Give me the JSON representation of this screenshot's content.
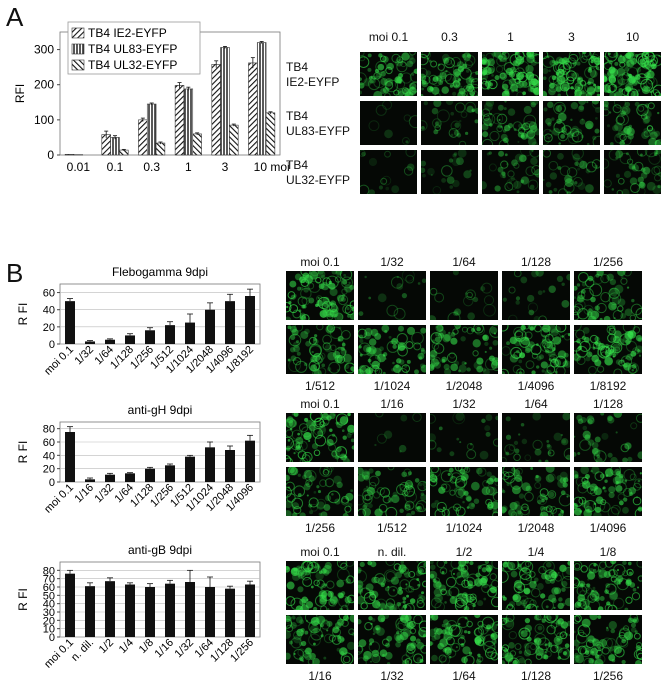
{
  "panel_a": {
    "letter": "A",
    "chart_data": {
      "type": "bar",
      "categories": [
        "0.01",
        "0.1",
        "0.3",
        "1",
        "3",
        "10"
      ],
      "xunit": "moi",
      "ylabel": "RFI",
      "ylim": [
        0,
        350
      ],
      "yticks": [
        "0",
        "100",
        "200",
        "300"
      ],
      "legend_position": "top-left",
      "series": [
        {
          "name": "TB4 IE2-EYFP",
          "pattern": "diag",
          "values": [
            2,
            58,
            100,
            198,
            258,
            262
          ],
          "errors": [
            0,
            10,
            5,
            8,
            10,
            15
          ]
        },
        {
          "name": "TB4 UL83-EYFP",
          "pattern": "vertical",
          "values": [
            1,
            50,
            145,
            188,
            306,
            320
          ],
          "errors": [
            0,
            5,
            3,
            5,
            3,
            3
          ]
        },
        {
          "name": "TB4 UL32-EYFP",
          "pattern": "anti",
          "values": [
            0,
            14,
            34,
            60,
            85,
            120
          ],
          "errors": [
            0,
            2,
            3,
            3,
            3,
            3
          ]
        }
      ]
    },
    "col_labels": [
      "moi 0.1",
      "0.3",
      "1",
      "3",
      "10"
    ],
    "row_labels": [
      {
        "l1": "TB4",
        "l2": "IE2-EYFP"
      },
      {
        "l1": "TB4",
        "l2": "UL83-EYFP"
      },
      {
        "l1": "TB4",
        "l2": "UL32-EYFP"
      }
    ],
    "intensity": [
      [
        0.55,
        0.6,
        0.75,
        0.75,
        0.8
      ],
      [
        0.0,
        0.2,
        0.4,
        0.35,
        0.4
      ],
      [
        0.05,
        0.1,
        0.25,
        0.2,
        0.3
      ]
    ]
  },
  "panel_b": {
    "letter": "B",
    "charts": [
      {
        "type": "bar",
        "title": "Flebogamma 9dpi",
        "ylabel": "R FI",
        "ylim": [
          0,
          70
        ],
        "yticks": [
          "0",
          "20",
          "40",
          "60"
        ],
        "categories": [
          "moi 0.1",
          "1/32",
          "1/64",
          "1/128",
          "1/256",
          "1/512",
          "1/1024",
          "1/2048",
          "1/4096",
          "1/8192"
        ],
        "values": [
          50,
          3,
          5,
          10,
          16,
          22,
          25,
          40,
          50,
          56
        ],
        "errors": [
          3,
          1,
          1,
          2,
          3,
          4,
          10,
          8,
          8,
          8
        ]
      },
      {
        "type": "bar",
        "title": "anti-gH 9dpi",
        "ylabel": "R FI",
        "ylim": [
          0,
          90
        ],
        "yticks": [
          "0",
          "20",
          "40",
          "60",
          "80"
        ],
        "categories": [
          "moi 0.1",
          "1/16",
          "1/32",
          "1/64",
          "1/128",
          "1/256",
          "1/512",
          "1/1024",
          "1/2048",
          "1/4096"
        ],
        "values": [
          75,
          4,
          11,
          13,
          20,
          25,
          38,
          52,
          48,
          62
        ],
        "errors": [
          8,
          2,
          2,
          1,
          2,
          2,
          2,
          8,
          6,
          8
        ]
      },
      {
        "type": "bar",
        "title": "anti-gB 9dpi",
        "ylabel": "R FI",
        "ylim": [
          0,
          90
        ],
        "yticks": [
          "0",
          "10",
          "20",
          "30",
          "40",
          "50",
          "60",
          "70",
          "80"
        ],
        "categories": [
          "moi 0.1",
          "n. dil.",
          "1/2",
          "1/4",
          "1/8",
          "1/16",
          "1/32",
          "1/64",
          "1/128",
          "1/256"
        ],
        "values": [
          76,
          61,
          67,
          63,
          60,
          64,
          66,
          60,
          58,
          63
        ],
        "errors": [
          4,
          4,
          4,
          2,
          4,
          4,
          14,
          12,
          3,
          4
        ]
      }
    ],
    "micro_groups": [
      {
        "top_labels": [
          "moi 0.1",
          "1/32",
          "1/64",
          "1/128",
          "1/256"
        ],
        "bottom_labels": [
          "1/512",
          "1/1024",
          "1/2048",
          "1/4096",
          "1/8192"
        ],
        "intensity": [
          [
            0.75,
            0.05,
            0.08,
            0.12,
            0.45
          ],
          [
            0.55,
            0.55,
            0.55,
            0.7,
            0.7
          ]
        ]
      },
      {
        "top_labels": [
          "moi 0.1",
          "1/16",
          "1/32",
          "1/64",
          "1/128"
        ],
        "bottom_labels": [
          "1/256",
          "1/512",
          "1/1024",
          "1/2048",
          "1/4096"
        ],
        "intensity": [
          [
            0.7,
            0.0,
            0.12,
            0.2,
            0.25
          ],
          [
            0.45,
            0.5,
            0.55,
            0.5,
            0.6
          ]
        ]
      },
      {
        "top_labels": [
          "moi 0.1",
          "n. dil.",
          "1/2",
          "1/4",
          "1/8"
        ],
        "bottom_labels": [
          "1/16",
          "1/32",
          "1/64",
          "1/128",
          "1/256"
        ],
        "intensity": [
          [
            0.65,
            0.65,
            0.65,
            0.65,
            0.65
          ],
          [
            0.6,
            0.6,
            0.65,
            0.65,
            0.6
          ]
        ]
      }
    ],
    "colors": {
      "bar": "#111111",
      "fluor": "#35e04a",
      "background": "#050805"
    }
  }
}
